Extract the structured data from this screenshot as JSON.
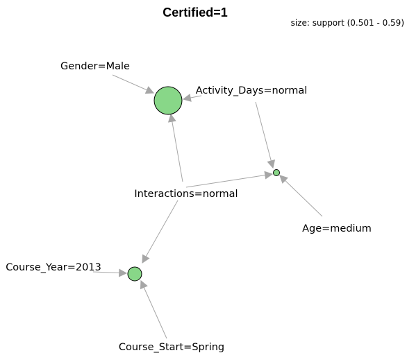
{
  "title": "Certified=1",
  "legend": "size: support (0.501 - 0.59)",
  "colors": {
    "node_fill": "#88d788",
    "node_stroke": "#000000",
    "edge": "#a6a6a6"
  },
  "items": {
    "gender": "Gender=Male",
    "activity": "Activity_Days=normal",
    "interactions": "Interactions=normal",
    "age": "Age=medium",
    "year": "Course_Year=2013",
    "start": "Course_Start=Spring"
  },
  "rules": [
    {
      "id": "rule-1",
      "lhs": [
        "gender",
        "activity",
        "interactions"
      ],
      "rhs": "Certified=1",
      "size": "large"
    },
    {
      "id": "rule-2",
      "lhs": [
        "activity",
        "interactions",
        "age"
      ],
      "rhs": "Certified=1",
      "size": "small"
    },
    {
      "id": "rule-3",
      "lhs": [
        "interactions",
        "year",
        "start"
      ],
      "rhs": "Certified=1",
      "size": "medium"
    }
  ]
}
